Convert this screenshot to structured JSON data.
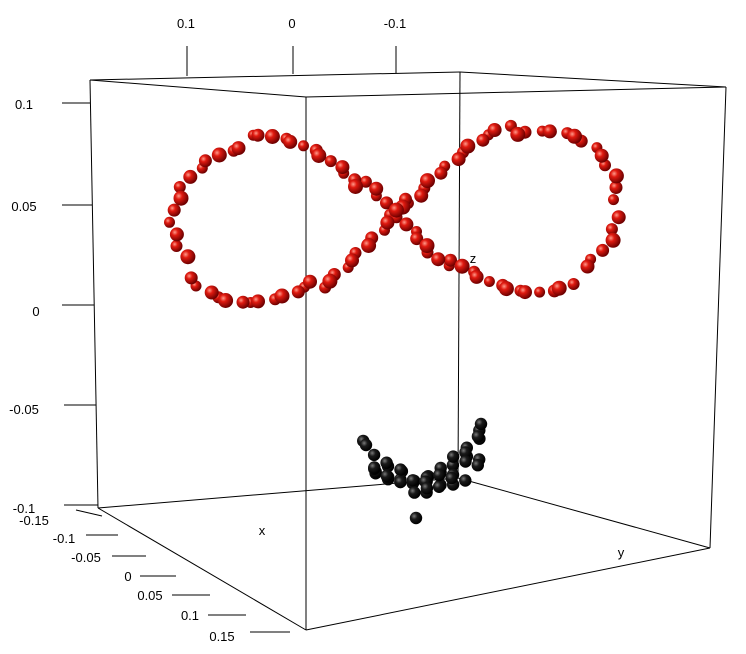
{
  "chart_data": {
    "type": "scatter",
    "title": "",
    "axes": {
      "x": {
        "name": "x",
        "ticks": [
          "-0.15",
          "-0.1",
          "-0.05",
          "0",
          "0.05",
          "0.1",
          "0.15"
        ]
      },
      "y": {
        "name": "y",
        "ticks": [
          "0.1",
          "0",
          "-0.1"
        ]
      },
      "z": {
        "name": "z",
        "ticks": [
          "0.1",
          "0.05",
          "0",
          "-0.05",
          "-0.1"
        ]
      }
    },
    "series": [
      {
        "color": "#cc0000",
        "shape": "sphere",
        "description_points": "figure-eight curve in upper region"
      },
      {
        "color": "#111111",
        "shape": "sphere",
        "description_points": "cluster projected near bottom face"
      }
    ],
    "bounding_box": true,
    "grid": false
  }
}
